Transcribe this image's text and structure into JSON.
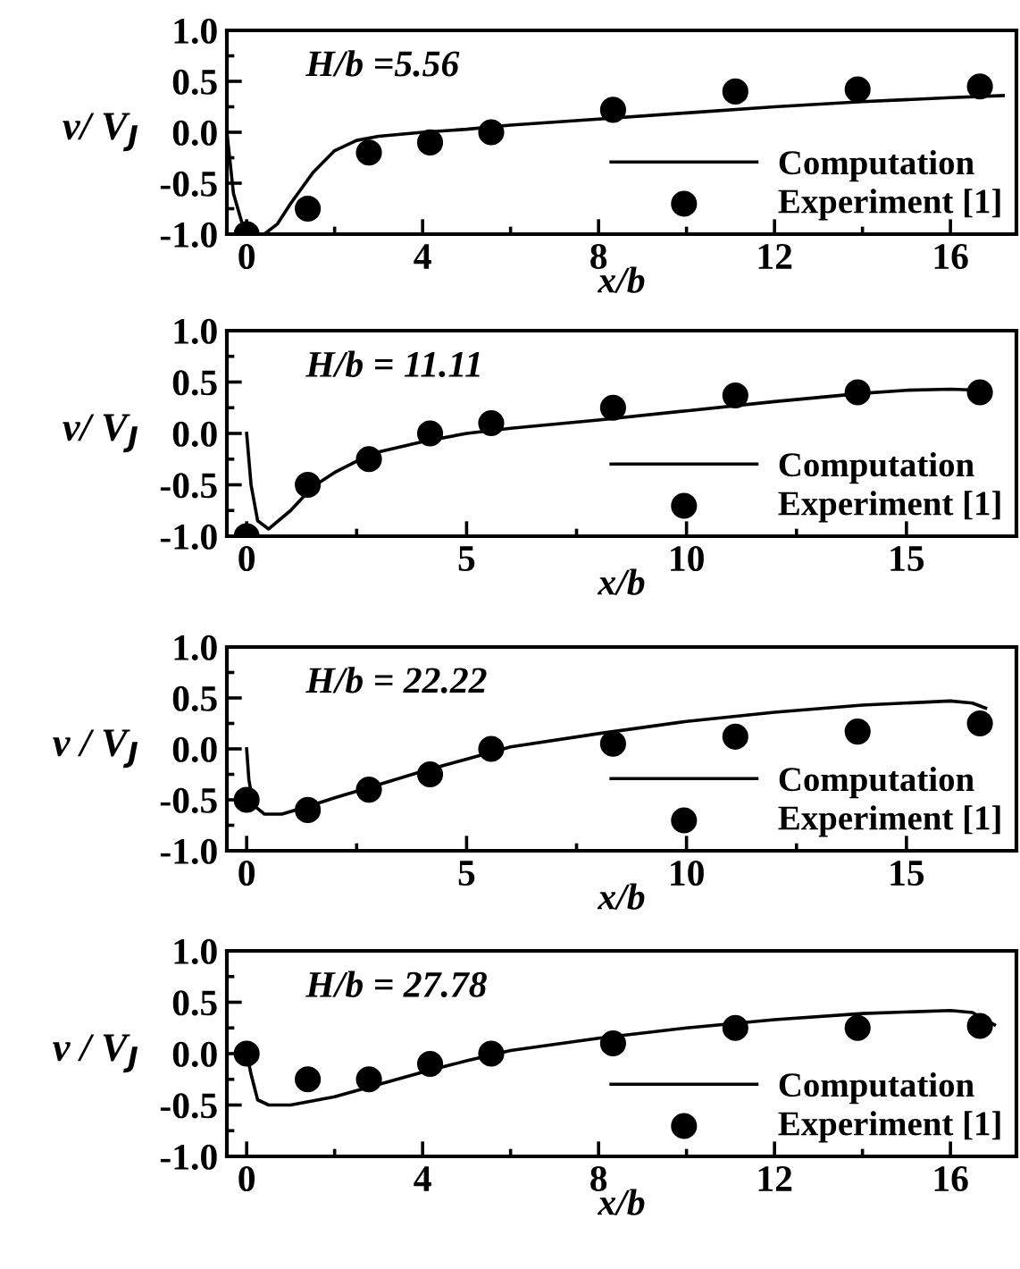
{
  "chart_data": [
    {
      "type": "line",
      "xlabel": "x/b",
      "ylabel": "v/ V$_{J}$",
      "annotations": [
        "H/b =5.56"
      ],
      "xlim": [
        -0.45,
        17.5
      ],
      "xticks": [
        0,
        4,
        8,
        12,
        16
      ],
      "ylim": [
        -1.0,
        1.0
      ],
      "yticks": [
        {
          "value": -1.0,
          "label": "-1.0"
        },
        {
          "value": -0.5,
          "label": "-0.5"
        },
        {
          "value": 0.0,
          "label": "0.0"
        },
        {
          "value": 0.5,
          "label": "0.5"
        },
        {
          "value": 1.0,
          "label": "1.0"
        }
      ],
      "legend": "bottom right",
      "grid": false,
      "series": [
        {
          "name": "Computation",
          "color": "#000000",
          "marker": "none",
          "line_style": "solid",
          "x": [
            -0.45,
            -0.3,
            -0.1,
            0.1,
            0.4,
            0.7,
            1.0,
            1.5,
            2.0,
            2.5,
            3,
            4,
            5,
            6,
            8,
            10,
            12,
            14,
            16,
            17.2
          ],
          "values": [
            0.0,
            -0.6,
            -0.9,
            -1.0,
            -1.0,
            -0.9,
            -0.7,
            -0.4,
            -0.18,
            -0.08,
            -0.04,
            0.0,
            0.03,
            0.07,
            0.13,
            0.19,
            0.25,
            0.3,
            0.34,
            0.36
          ]
        },
        {
          "name": "Experiment [1]",
          "type": "scatter",
          "color": "#000000",
          "marker": "circle",
          "x": [
            0,
            1.39,
            2.78,
            4.17,
            5.56,
            8.33,
            11.11,
            13.89,
            16.67
          ],
          "values": [
            -1.0,
            -0.75,
            -0.2,
            -0.1,
            0.0,
            0.22,
            0.4,
            0.42,
            0.45
          ]
        }
      ]
    },
    {
      "type": "line",
      "xlabel": "x/b",
      "ylabel": "v/ V$_{J}$",
      "annotations": [
        "H/b = 11.11"
      ],
      "xlim": [
        -0.45,
        17.5
      ],
      "xticks": [
        0,
        5,
        10,
        15
      ],
      "ylim": [
        -1.0,
        1.0
      ],
      "yticks": [
        {
          "value": -1.0,
          "label": "-1.0"
        },
        {
          "value": -0.5,
          "label": "-0.5"
        },
        {
          "value": 0.0,
          "label": "0.0"
        },
        {
          "value": 0.5,
          "label": "0.5"
        },
        {
          "value": 1.0,
          "label": "1.0"
        }
      ],
      "legend": "bottom right",
      "grid": false,
      "series": [
        {
          "name": "Computation",
          "color": "#000000",
          "marker": "none",
          "line_style": "solid",
          "x": [
            0,
            0.1,
            0.25,
            0.5,
            1.0,
            1.5,
            2,
            2.5,
            3,
            4,
            5,
            6,
            8,
            10,
            12,
            14,
            15,
            16,
            16.7
          ],
          "values": [
            0.0,
            -0.5,
            -0.85,
            -0.93,
            -0.75,
            -0.52,
            -0.38,
            -0.27,
            -0.18,
            -0.08,
            0.0,
            0.05,
            0.13,
            0.22,
            0.31,
            0.39,
            0.42,
            0.43,
            0.42
          ]
        },
        {
          "name": "Experiment [1]",
          "type": "scatter",
          "color": "#000000",
          "marker": "circle",
          "x": [
            0,
            1.39,
            2.78,
            4.17,
            5.56,
            8.33,
            11.11,
            13.89,
            16.67
          ],
          "values": [
            -1.0,
            -0.5,
            -0.25,
            0.0,
            0.1,
            0.25,
            0.37,
            0.4,
            0.4
          ]
        }
      ]
    },
    {
      "type": "line",
      "xlabel": "x/b",
      "ylabel": "v / V$_{J}$",
      "annotations": [
        "H/b = 22.22"
      ],
      "xlim": [
        -0.45,
        17.5
      ],
      "xticks": [
        0,
        5,
        10,
        15
      ],
      "ylim": [
        -1.0,
        1.0
      ],
      "yticks": [
        {
          "value": -1.0,
          "label": "-1.0"
        },
        {
          "value": -0.5,
          "label": "-0.5"
        },
        {
          "value": 0.0,
          "label": "0.0"
        },
        {
          "value": 0.5,
          "label": "0.5"
        },
        {
          "value": 1.0,
          "label": "1.0"
        }
      ],
      "legend": "bottom right",
      "grid": false,
      "series": [
        {
          "name": "Computation",
          "color": "#000000",
          "marker": "none",
          "line_style": "solid",
          "x": [
            0,
            0.05,
            0.15,
            0.4,
            0.8,
            1.5,
            2,
            3,
            4,
            5,
            6,
            8,
            10,
            12,
            14,
            16,
            16.5,
            16.8
          ],
          "values": [
            0.0,
            -0.3,
            -0.55,
            -0.64,
            -0.64,
            -0.55,
            -0.48,
            -0.35,
            -0.22,
            -0.1,
            0.02,
            0.15,
            0.27,
            0.36,
            0.43,
            0.47,
            0.45,
            0.4
          ]
        },
        {
          "name": "Experiment [1]",
          "type": "scatter",
          "color": "#000000",
          "marker": "circle",
          "x": [
            0,
            1.39,
            2.78,
            4.17,
            5.56,
            8.33,
            11.11,
            13.89,
            16.67
          ],
          "values": [
            -0.5,
            -0.6,
            -0.4,
            -0.25,
            0.0,
            0.05,
            0.12,
            0.17,
            0.25
          ]
        }
      ]
    },
    {
      "type": "line",
      "xlabel": "x/b",
      "ylabel": "v / V$_{J}$",
      "annotations": [
        "H/b = 27.78"
      ],
      "xlim": [
        -0.45,
        17.5
      ],
      "xticks": [
        0,
        4,
        8,
        12,
        16
      ],
      "ylim": [
        -1.0,
        1.0
      ],
      "yticks": [
        {
          "value": -1.0,
          "label": "-1.0"
        },
        {
          "value": -0.5,
          "label": "-0.5"
        },
        {
          "value": 0.0,
          "label": "0.0"
        },
        {
          "value": 0.5,
          "label": "0.5"
        },
        {
          "value": 1.0,
          "label": "1.0"
        }
      ],
      "legend": "bottom right",
      "grid": false,
      "series": [
        {
          "name": "Computation",
          "color": "#000000",
          "marker": "none",
          "line_style": "solid",
          "x": [
            0,
            0.1,
            0.25,
            0.5,
            1,
            2,
            3,
            4,
            5,
            6,
            8,
            10,
            12,
            14,
            16,
            16.5,
            17
          ],
          "values": [
            0.0,
            -0.2,
            -0.45,
            -0.5,
            -0.5,
            -0.42,
            -0.3,
            -0.18,
            -0.07,
            0.03,
            0.15,
            0.25,
            0.33,
            0.39,
            0.42,
            0.4,
            0.28
          ]
        },
        {
          "name": "Experiment [1]",
          "type": "scatter",
          "color": "#000000",
          "marker": "circle",
          "x": [
            0,
            1.39,
            2.78,
            4.17,
            5.56,
            8.33,
            11.11,
            13.89,
            16.67
          ],
          "values": [
            0.0,
            -0.25,
            -0.25,
            -0.1,
            0.0,
            0.1,
            0.25,
            0.25,
            0.27
          ]
        }
      ]
    }
  ]
}
